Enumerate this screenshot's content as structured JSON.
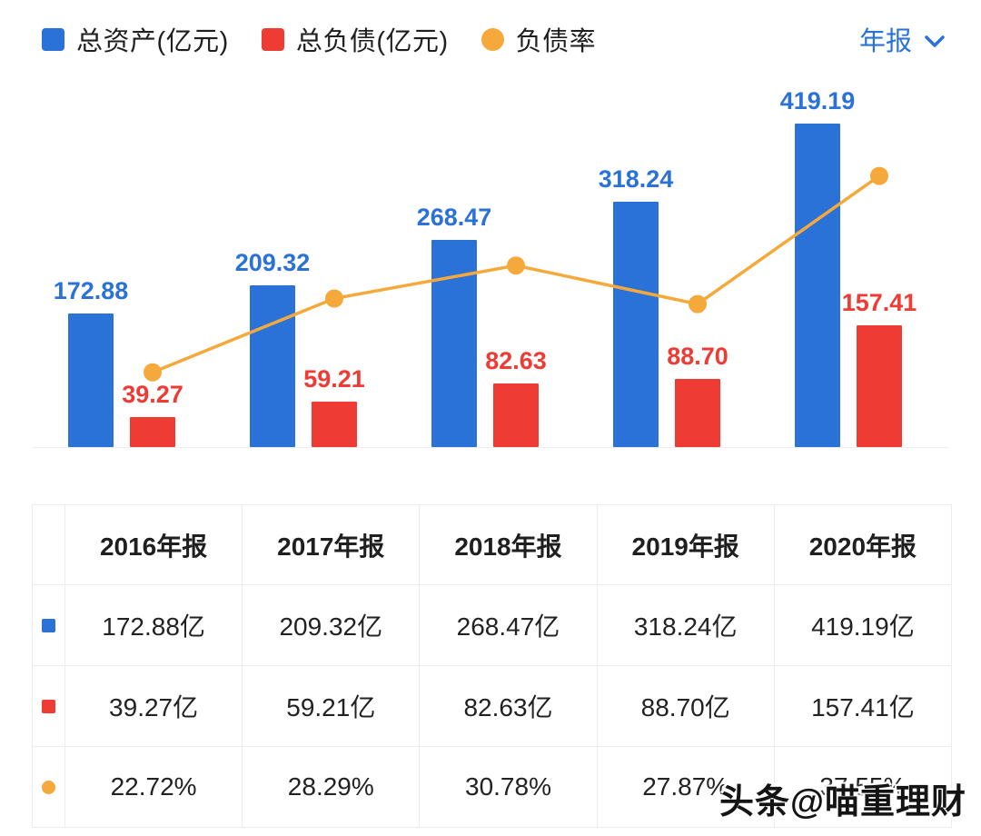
{
  "colors": {
    "accent_blue": "#2b72d8",
    "asset_blue": "#2b72d8",
    "liability_red": "#ee3b33",
    "ratio_orange": "#f5a93b"
  },
  "legend": {
    "items": [
      {
        "name": "total-assets",
        "label": "总资产(亿元)",
        "color": "#2b72d8",
        "shape": "square"
      },
      {
        "name": "total-liabilities",
        "label": "总负债(亿元)",
        "color": "#ee3b33",
        "shape": "square"
      },
      {
        "name": "debt-ratio",
        "label": "负债率",
        "color": "#f5a93b",
        "shape": "circle"
      }
    ]
  },
  "period_selector": {
    "label": "年报"
  },
  "chart_data": {
    "type": "bar",
    "title": "",
    "categories": [
      "2016年报",
      "2017年报",
      "2018年报",
      "2019年报",
      "2020年报"
    ],
    "series": [
      {
        "name": "总资产(亿元)",
        "type": "bar",
        "unit": "亿元",
        "color": "#2b72d8",
        "values": [
          172.88,
          209.32,
          268.47,
          318.24,
          419.19
        ]
      },
      {
        "name": "总负债(亿元)",
        "type": "bar",
        "unit": "亿元",
        "color": "#ee3b33",
        "values": [
          39.27,
          59.21,
          82.63,
          88.7,
          157.41
        ]
      },
      {
        "name": "负债率",
        "type": "line",
        "unit": "%",
        "color": "#f5a93b",
        "values": [
          22.72,
          28.29,
          30.78,
          27.87,
          37.55
        ]
      }
    ],
    "bar_axis_max": 480,
    "line_axis_range": [
      17,
      45
    ],
    "grid": false,
    "legend_position": "top-left",
    "value_labels": "above-bars"
  },
  "table": {
    "headers": [
      "2016年报",
      "2017年报",
      "2018年报",
      "2019年报",
      "2020年报"
    ],
    "rows": [
      {
        "icon": "blue-square-icon",
        "shape": "square",
        "color": "#2b72d8",
        "cells": [
          "172.88亿",
          "209.32亿",
          "268.47亿",
          "318.24亿",
          "419.19亿"
        ]
      },
      {
        "icon": "red-square-icon",
        "shape": "square",
        "color": "#ee3b33",
        "cells": [
          "39.27亿",
          "59.21亿",
          "82.63亿",
          "88.70亿",
          "157.41亿"
        ]
      },
      {
        "icon": "yellow-circle-icon",
        "shape": "circle",
        "color": "#f5a93b",
        "cells": [
          "22.72%",
          "28.29%",
          "30.78%",
          "27.87%",
          "37.55%"
        ]
      }
    ]
  },
  "watermark": "头条@喵重理财"
}
